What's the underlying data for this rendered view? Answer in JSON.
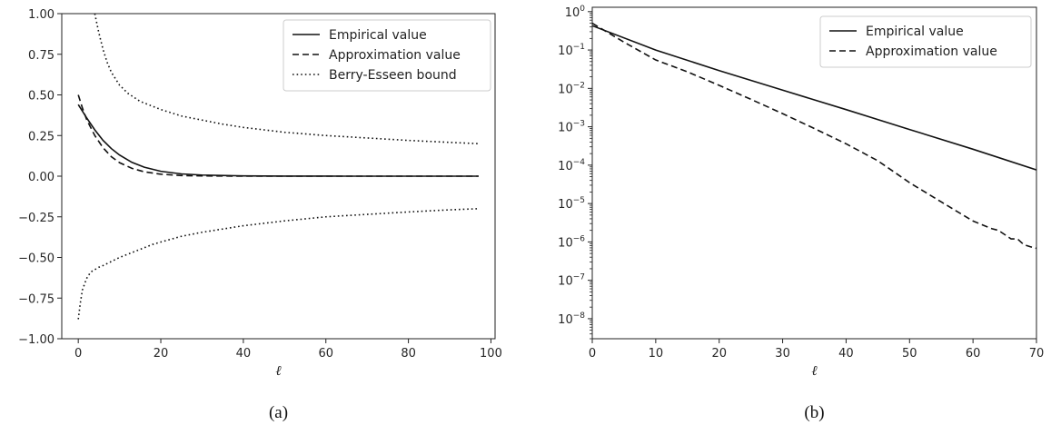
{
  "chart_data": [
    {
      "type": "line",
      "caption": "(a)",
      "xlabel": "ℓ",
      "ylabel": "",
      "xlim": [
        -4,
        101
      ],
      "ylim": [
        -1.0,
        1.0
      ],
      "xticks": [
        0,
        20,
        40,
        60,
        80,
        100
      ],
      "yticks": [
        -1.0,
        -0.75,
        -0.5,
        -0.25,
        0.0,
        0.25,
        0.5,
        0.75,
        1.0
      ],
      "xtick_labels": [
        "0",
        "20",
        "40",
        "60",
        "80",
        "100"
      ],
      "ytick_labels": [
        "−1.00",
        "−0.75",
        "−0.50",
        "−0.25",
        "0.00",
        "0.25",
        "0.50",
        "0.75",
        "1.00"
      ],
      "grid": false,
      "legend_position": "top-right",
      "series": [
        {
          "name": "Empirical value",
          "style": "solid",
          "x": [
            0,
            2,
            4,
            6,
            8,
            10,
            13,
            16,
            20,
            25,
            30,
            40,
            50,
            60,
            70,
            80,
            90,
            97
          ],
          "y": [
            0.44,
            0.36,
            0.285,
            0.22,
            0.17,
            0.13,
            0.085,
            0.055,
            0.03,
            0.014,
            0.007,
            0.002,
            0.0005,
            0.0001,
            0.0,
            0.0,
            0.0,
            0.0
          ]
        },
        {
          "name": "Approximation value",
          "style": "dashed",
          "x": [
            0,
            1,
            2,
            4,
            6,
            8,
            10,
            13,
            16,
            20,
            25,
            30,
            40,
            50,
            60,
            70,
            80,
            90,
            97
          ],
          "y": [
            0.5,
            0.42,
            0.35,
            0.25,
            0.175,
            0.12,
            0.083,
            0.048,
            0.027,
            0.012,
            0.004,
            0.0015,
            0.0002,
            0.0,
            0.0,
            0.0,
            0.0,
            0.0,
            0.0
          ]
        },
        {
          "name": "Berry-Esseen bound",
          "style": "dotted",
          "x": [
            4,
            5,
            6,
            7,
            8,
            10,
            12,
            15,
            18,
            20,
            25,
            30,
            35,
            40,
            50,
            60,
            70,
            80,
            90,
            97
          ],
          "y": [
            1.0,
            0.88,
            0.78,
            0.7,
            0.64,
            0.56,
            0.51,
            0.46,
            0.43,
            0.41,
            0.37,
            0.345,
            0.32,
            0.3,
            0.27,
            0.25,
            0.235,
            0.22,
            0.208,
            0.2
          ]
        },
        {
          "name": "",
          "style": "dotted",
          "x": [
            0,
            0.5,
            1,
            2,
            3,
            4,
            5,
            6,
            8,
            10,
            12,
            15,
            18,
            20,
            25,
            30,
            35,
            40,
            50,
            60,
            70,
            80,
            90,
            97
          ],
          "y": [
            -0.88,
            -0.78,
            -0.7,
            -0.63,
            -0.59,
            -0.575,
            -0.56,
            -0.55,
            -0.525,
            -0.5,
            -0.48,
            -0.45,
            -0.42,
            -0.405,
            -0.37,
            -0.345,
            -0.325,
            -0.305,
            -0.275,
            -0.25,
            -0.235,
            -0.22,
            -0.207,
            -0.2
          ]
        }
      ]
    },
    {
      "type": "line",
      "caption": "(b)",
      "xlabel": "ℓ",
      "ylabel": "",
      "yscale": "log",
      "xlim": [
        0,
        70
      ],
      "ylim": [
        3e-09,
        1.3
      ],
      "xticks": [
        0,
        10,
        20,
        30,
        40,
        50,
        60,
        70
      ],
      "xtick_labels": [
        "0",
        "10",
        "20",
        "30",
        "40",
        "50",
        "60",
        "70"
      ],
      "yticks": [
        1e-08,
        1e-07,
        1e-06,
        1e-05,
        0.0001,
        0.001,
        0.01,
        0.1,
        1
      ],
      "ytick_exponents": [
        "−8",
        "−7",
        "−6",
        "−5",
        "−4",
        "−3",
        "−2",
        "−1",
        "0"
      ],
      "ytick_base": "10",
      "grid": false,
      "legend_position": "top-right",
      "series": [
        {
          "name": "Empirical value",
          "style": "solid",
          "x": [
            0,
            10,
            20,
            30,
            40,
            50,
            60,
            70
          ],
          "y": [
            0.43,
            0.1,
            0.029,
            0.009,
            0.0028,
            0.00085,
            0.00026,
            7.5e-05
          ]
        },
        {
          "name": "Approximation value",
          "style": "dashed",
          "x": [
            0,
            5,
            10,
            15,
            20,
            25,
            30,
            35,
            40,
            45,
            50,
            55,
            60,
            63,
            64,
            66,
            67,
            68,
            69,
            70
          ],
          "y": [
            0.5,
            0.16,
            0.055,
            0.027,
            0.012,
            0.0052,
            0.0022,
            0.0009,
            0.00036,
            0.00013,
            3.5e-05,
            1.1e-05,
            3.5e-06,
            2.2e-06,
            2e-06,
            1.2e-06,
            1.2e-06,
            8.5e-07,
            7.5e-07,
            6.8e-07
          ]
        }
      ]
    }
  ]
}
